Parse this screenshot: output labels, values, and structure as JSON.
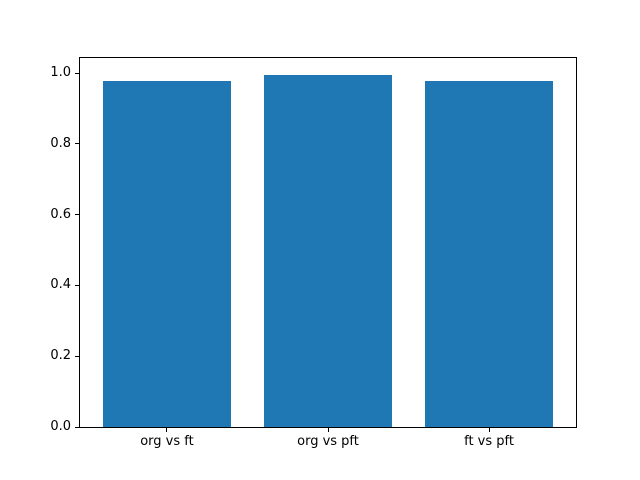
{
  "figure": {
    "background_color": "#ffffff",
    "spine_color": "#000000",
    "text_color": "#000000"
  },
  "chart_data": {
    "type": "bar",
    "title": "",
    "xlabel": "",
    "ylabel": "",
    "categories": [
      "org vs ft",
      "org vs pft",
      "ft vs pft"
    ],
    "values": [
      0.978,
      0.994,
      0.979
    ],
    "bar_color": "#1f77b4",
    "bar_width": 0.8,
    "xlim": [
      -0.54,
      2.54
    ],
    "ylim": [
      0,
      1.043
    ],
    "ytick_values": [
      0.0,
      0.2,
      0.4,
      0.6,
      0.8,
      1.0
    ],
    "ytick_labels": [
      "0.0",
      "0.2",
      "0.4",
      "0.6",
      "0.8",
      "1.0"
    ],
    "grid": "off",
    "legend": "none"
  }
}
